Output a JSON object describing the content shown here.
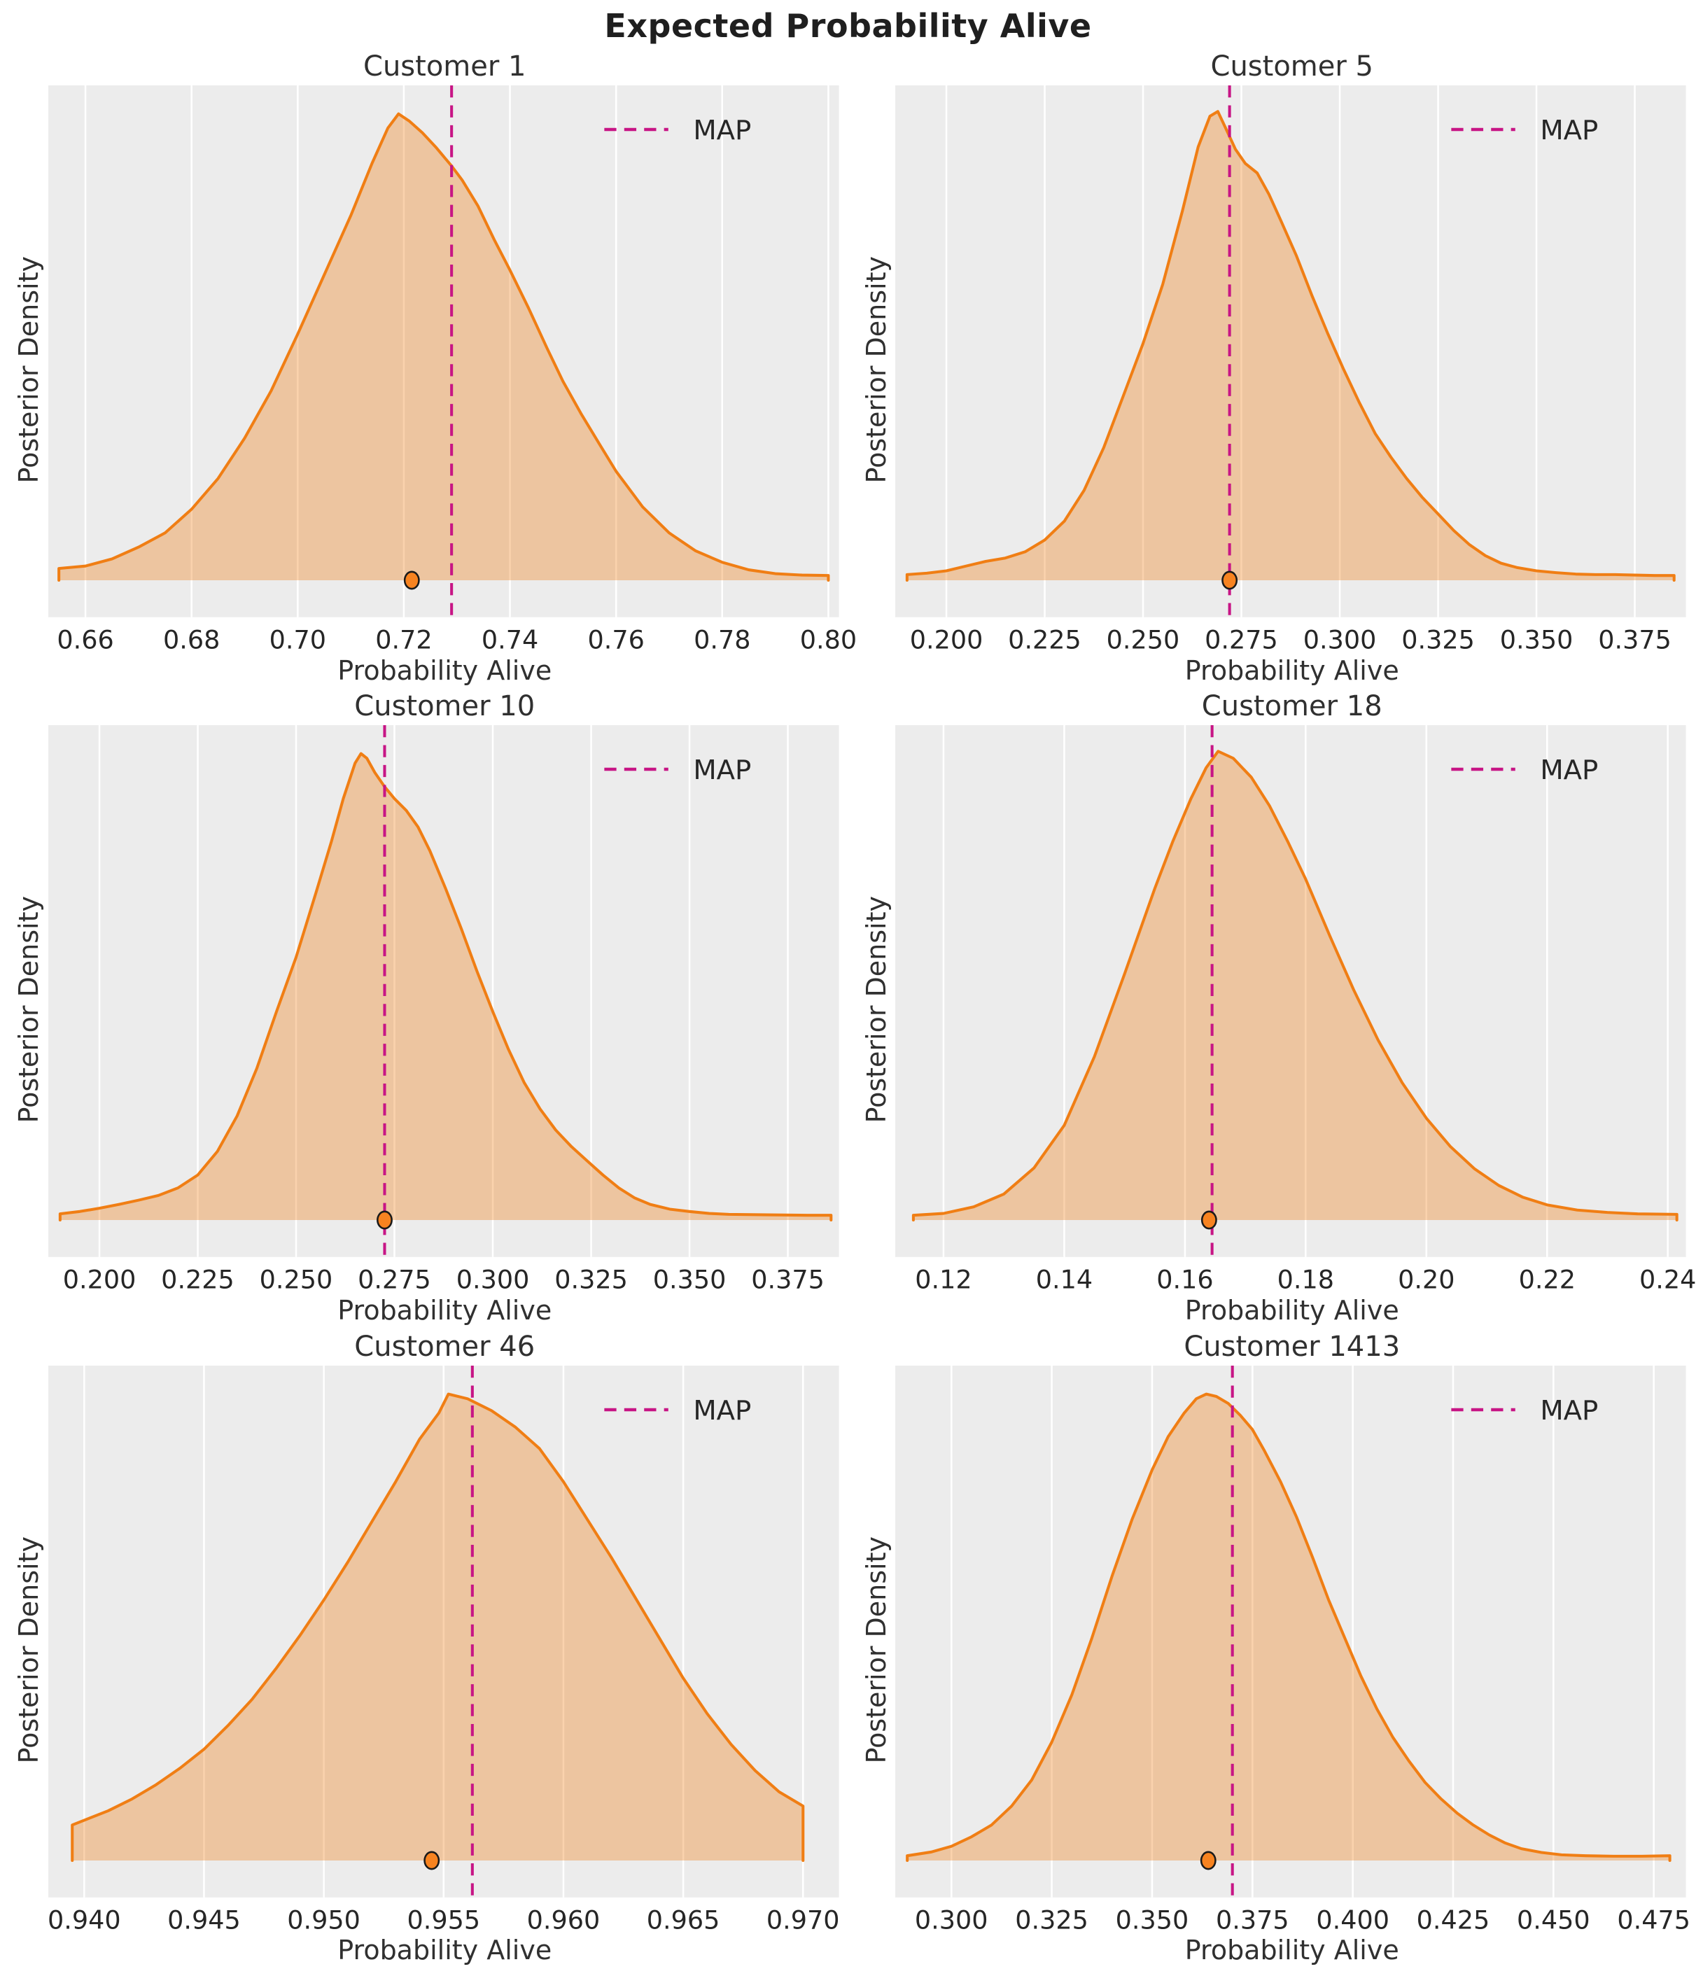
{
  "figure": {
    "title": "Expected Probability Alive"
  },
  "axis_labels": {
    "x": "Probability Alive",
    "y": "Posterior Density"
  },
  "legend": {
    "label": "MAP"
  },
  "colors": {
    "figure_background": "#ffffff",
    "axes_background": "#ececec",
    "grid": "#ffffff",
    "kde_line": "#f07e14",
    "kde_fill": "rgba(240,126,20,0.35)",
    "map_line": "#c71585",
    "dot_fill": "#f78320",
    "dot_edge": "#1a1a1a",
    "text": "#262626"
  },
  "chart_data": [
    {
      "type": "area",
      "title": "Customer 1",
      "xlabel": "Probability Alive",
      "ylabel": "Posterior Density",
      "legend_label": "MAP",
      "xlim": [
        0.653,
        0.802
      ],
      "xticks": [
        0.66,
        0.68,
        0.7,
        0.72,
        0.74,
        0.76,
        0.78,
        0.8
      ],
      "xtick_labels": [
        "0.66",
        "0.68",
        "0.70",
        "0.72",
        "0.74",
        "0.76",
        "0.78",
        "0.80"
      ],
      "yticks": [],
      "grid": "x-only",
      "map_value": 0.729,
      "dot_value": 0.7215,
      "curve": [
        [
          0.655,
          0
        ],
        [
          0.655,
          0.025
        ],
        [
          0.66,
          0.03
        ],
        [
          0.665,
          0.045
        ],
        [
          0.67,
          0.07
        ],
        [
          0.675,
          0.1
        ],
        [
          0.68,
          0.15
        ],
        [
          0.685,
          0.215
        ],
        [
          0.69,
          0.3
        ],
        [
          0.695,
          0.4
        ],
        [
          0.7,
          0.52
        ],
        [
          0.705,
          0.645
        ],
        [
          0.71,
          0.77
        ],
        [
          0.714,
          0.88
        ],
        [
          0.717,
          0.955
        ],
        [
          0.719,
          0.985
        ],
        [
          0.721,
          0.97
        ],
        [
          0.7235,
          0.945
        ],
        [
          0.726,
          0.915
        ],
        [
          0.729,
          0.875
        ],
        [
          0.731,
          0.845
        ],
        [
          0.734,
          0.79
        ],
        [
          0.737,
          0.72
        ],
        [
          0.74,
          0.655
        ],
        [
          0.7435,
          0.575
        ],
        [
          0.747,
          0.49
        ],
        [
          0.75,
          0.42
        ],
        [
          0.7535,
          0.35
        ],
        [
          0.757,
          0.285
        ],
        [
          0.76,
          0.23
        ],
        [
          0.765,
          0.155
        ],
        [
          0.77,
          0.1
        ],
        [
          0.775,
          0.062
        ],
        [
          0.78,
          0.038
        ],
        [
          0.785,
          0.022
        ],
        [
          0.79,
          0.014
        ],
        [
          0.795,
          0.011
        ],
        [
          0.8,
          0.01
        ],
        [
          0.8,
          0
        ]
      ]
    },
    {
      "type": "area",
      "title": "Customer 5",
      "xlabel": "Probability Alive",
      "ylabel": "Posterior Density",
      "legend_label": "MAP",
      "xlim": [
        0.187,
        0.388
      ],
      "xticks": [
        0.2,
        0.225,
        0.25,
        0.275,
        0.3,
        0.325,
        0.35,
        0.375
      ],
      "xtick_labels": [
        "0.200",
        "0.225",
        "0.250",
        "0.275",
        "0.300",
        "0.325",
        "0.350",
        "0.375"
      ],
      "yticks": [],
      "grid": "x-only",
      "map_value": 0.272,
      "dot_value": 0.272,
      "curve": [
        [
          0.19,
          0
        ],
        [
          0.19,
          0.012
        ],
        [
          0.195,
          0.015
        ],
        [
          0.2,
          0.02
        ],
        [
          0.205,
          0.03
        ],
        [
          0.21,
          0.04
        ],
        [
          0.215,
          0.047
        ],
        [
          0.22,
          0.06
        ],
        [
          0.225,
          0.085
        ],
        [
          0.23,
          0.125
        ],
        [
          0.235,
          0.19
        ],
        [
          0.24,
          0.28
        ],
        [
          0.245,
          0.39
        ],
        [
          0.25,
          0.5
        ],
        [
          0.255,
          0.625
        ],
        [
          0.26,
          0.78
        ],
        [
          0.264,
          0.915
        ],
        [
          0.267,
          0.98
        ],
        [
          0.269,
          0.99
        ],
        [
          0.271,
          0.955
        ],
        [
          0.2735,
          0.91
        ],
        [
          0.276,
          0.88
        ],
        [
          0.279,
          0.86
        ],
        [
          0.282,
          0.815
        ],
        [
          0.285,
          0.76
        ],
        [
          0.289,
          0.685
        ],
        [
          0.293,
          0.6
        ],
        [
          0.297,
          0.52
        ],
        [
          0.301,
          0.445
        ],
        [
          0.305,
          0.375
        ],
        [
          0.309,
          0.31
        ],
        [
          0.313,
          0.26
        ],
        [
          0.317,
          0.215
        ],
        [
          0.321,
          0.175
        ],
        [
          0.325,
          0.14
        ],
        [
          0.329,
          0.105
        ],
        [
          0.333,
          0.075
        ],
        [
          0.337,
          0.052
        ],
        [
          0.341,
          0.036
        ],
        [
          0.345,
          0.027
        ],
        [
          0.35,
          0.02
        ],
        [
          0.355,
          0.016
        ],
        [
          0.36,
          0.013
        ],
        [
          0.365,
          0.012
        ],
        [
          0.37,
          0.012
        ],
        [
          0.375,
          0.011
        ],
        [
          0.38,
          0.01
        ],
        [
          0.385,
          0.01
        ],
        [
          0.385,
          0
        ]
      ]
    },
    {
      "type": "area",
      "title": "Customer 10",
      "xlabel": "Probability Alive",
      "ylabel": "Posterior Density",
      "legend_label": "MAP",
      "xlim": [
        0.187,
        0.388
      ],
      "xticks": [
        0.2,
        0.225,
        0.25,
        0.275,
        0.3,
        0.325,
        0.35,
        0.375
      ],
      "xtick_labels": [
        "0.200",
        "0.225",
        "0.250",
        "0.275",
        "0.300",
        "0.325",
        "0.350",
        "0.375"
      ],
      "yticks": [],
      "grid": "x-only",
      "map_value": 0.2725,
      "dot_value": 0.2725,
      "curve": [
        [
          0.19,
          0
        ],
        [
          0.19,
          0.013
        ],
        [
          0.195,
          0.018
        ],
        [
          0.2,
          0.025
        ],
        [
          0.205,
          0.033
        ],
        [
          0.21,
          0.042
        ],
        [
          0.215,
          0.052
        ],
        [
          0.22,
          0.068
        ],
        [
          0.225,
          0.095
        ],
        [
          0.23,
          0.145
        ],
        [
          0.235,
          0.22
        ],
        [
          0.24,
          0.32
        ],
        [
          0.245,
          0.44
        ],
        [
          0.25,
          0.555
        ],
        [
          0.255,
          0.69
        ],
        [
          0.259,
          0.8
        ],
        [
          0.262,
          0.89
        ],
        [
          0.265,
          0.965
        ],
        [
          0.2665,
          0.985
        ],
        [
          0.268,
          0.975
        ],
        [
          0.27,
          0.945
        ],
        [
          0.2725,
          0.915
        ],
        [
          0.275,
          0.89
        ],
        [
          0.278,
          0.865
        ],
        [
          0.281,
          0.83
        ],
        [
          0.284,
          0.78
        ],
        [
          0.288,
          0.7
        ],
        [
          0.292,
          0.615
        ],
        [
          0.296,
          0.525
        ],
        [
          0.3,
          0.44
        ],
        [
          0.304,
          0.36
        ],
        [
          0.308,
          0.29
        ],
        [
          0.312,
          0.235
        ],
        [
          0.316,
          0.19
        ],
        [
          0.32,
          0.155
        ],
        [
          0.324,
          0.125
        ],
        [
          0.328,
          0.095
        ],
        [
          0.332,
          0.068
        ],
        [
          0.336,
          0.047
        ],
        [
          0.34,
          0.033
        ],
        [
          0.345,
          0.023
        ],
        [
          0.35,
          0.018
        ],
        [
          0.355,
          0.014
        ],
        [
          0.36,
          0.012
        ],
        [
          0.37,
          0.011
        ],
        [
          0.38,
          0.01
        ],
        [
          0.386,
          0.01
        ],
        [
          0.386,
          0
        ]
      ]
    },
    {
      "type": "area",
      "title": "Customer 18",
      "xlabel": "Probability Alive",
      "ylabel": "Posterior Density",
      "legend_label": "MAP",
      "xlim": [
        0.112,
        0.243
      ],
      "xticks": [
        0.12,
        0.14,
        0.16,
        0.18,
        0.2,
        0.22,
        0.24
      ],
      "xtick_labels": [
        "0.12",
        "0.14",
        "0.16",
        "0.18",
        "0.20",
        "0.22",
        "0.24"
      ],
      "yticks": [],
      "grid": "x-only",
      "map_value": 0.1645,
      "dot_value": 0.164,
      "curve": [
        [
          0.115,
          0
        ],
        [
          0.115,
          0.01
        ],
        [
          0.12,
          0.014
        ],
        [
          0.125,
          0.028
        ],
        [
          0.13,
          0.055
        ],
        [
          0.135,
          0.11
        ],
        [
          0.14,
          0.2
        ],
        [
          0.145,
          0.345
        ],
        [
          0.15,
          0.52
        ],
        [
          0.155,
          0.7
        ],
        [
          0.158,
          0.8
        ],
        [
          0.161,
          0.89
        ],
        [
          0.1635,
          0.955
        ],
        [
          0.1655,
          0.99
        ],
        [
          0.168,
          0.975
        ],
        [
          0.171,
          0.935
        ],
        [
          0.174,
          0.875
        ],
        [
          0.177,
          0.8
        ],
        [
          0.18,
          0.72
        ],
        [
          0.184,
          0.6
        ],
        [
          0.188,
          0.485
        ],
        [
          0.192,
          0.38
        ],
        [
          0.196,
          0.29
        ],
        [
          0.2,
          0.215
        ],
        [
          0.204,
          0.155
        ],
        [
          0.208,
          0.108
        ],
        [
          0.212,
          0.073
        ],
        [
          0.216,
          0.048
        ],
        [
          0.22,
          0.032
        ],
        [
          0.225,
          0.021
        ],
        [
          0.23,
          0.016
        ],
        [
          0.235,
          0.013
        ],
        [
          0.2415,
          0.012
        ],
        [
          0.2415,
          0
        ]
      ]
    },
    {
      "type": "area",
      "title": "Customer 46",
      "xlabel": "Probability Alive",
      "ylabel": "Posterior Density",
      "legend_label": "MAP",
      "xlim": [
        0.9385,
        0.9715
      ],
      "xticks": [
        0.94,
        0.945,
        0.95,
        0.955,
        0.96,
        0.965,
        0.97
      ],
      "xtick_labels": [
        "0.940",
        "0.945",
        "0.950",
        "0.955",
        "0.960",
        "0.965",
        "0.970"
      ],
      "yticks": [],
      "grid": "x-only",
      "map_value": 0.9562,
      "dot_value": 0.9545,
      "curve": [
        [
          0.9395,
          0
        ],
        [
          0.9395,
          0.075
        ],
        [
          0.94,
          0.085
        ],
        [
          0.941,
          0.105
        ],
        [
          0.942,
          0.13
        ],
        [
          0.943,
          0.16
        ],
        [
          0.944,
          0.195
        ],
        [
          0.945,
          0.235
        ],
        [
          0.946,
          0.285
        ],
        [
          0.947,
          0.34
        ],
        [
          0.948,
          0.405
        ],
        [
          0.949,
          0.475
        ],
        [
          0.95,
          0.55
        ],
        [
          0.951,
          0.63
        ],
        [
          0.952,
          0.715
        ],
        [
          0.953,
          0.8
        ],
        [
          0.954,
          0.89
        ],
        [
          0.9548,
          0.945
        ],
        [
          0.9552,
          0.985
        ],
        [
          0.956,
          0.975
        ],
        [
          0.957,
          0.95
        ],
        [
          0.958,
          0.915
        ],
        [
          0.959,
          0.87
        ],
        [
          0.96,
          0.8
        ],
        [
          0.961,
          0.72
        ],
        [
          0.962,
          0.64
        ],
        [
          0.963,
          0.555
        ],
        [
          0.964,
          0.47
        ],
        [
          0.965,
          0.385
        ],
        [
          0.966,
          0.31
        ],
        [
          0.967,
          0.245
        ],
        [
          0.968,
          0.19
        ],
        [
          0.969,
          0.145
        ],
        [
          0.97,
          0.115
        ],
        [
          0.97,
          0
        ]
      ]
    },
    {
      "type": "area",
      "title": "Customer 1413",
      "xlabel": "Probability Alive",
      "ylabel": "Posterior Density",
      "legend_label": "MAP",
      "xlim": [
        0.286,
        0.483
      ],
      "xticks": [
        0.3,
        0.325,
        0.35,
        0.375,
        0.4,
        0.425,
        0.45,
        0.475
      ],
      "xtick_labels": [
        "0.300",
        "0.325",
        "0.350",
        "0.375",
        "0.400",
        "0.425",
        "0.450",
        "0.475"
      ],
      "yticks": [],
      "grid": "x-only",
      "map_value": 0.37,
      "dot_value": 0.364,
      "curve": [
        [
          0.289,
          0
        ],
        [
          0.289,
          0.01
        ],
        [
          0.295,
          0.018
        ],
        [
          0.3,
          0.03
        ],
        [
          0.305,
          0.05
        ],
        [
          0.31,
          0.075
        ],
        [
          0.315,
          0.115
        ],
        [
          0.32,
          0.17
        ],
        [
          0.325,
          0.25
        ],
        [
          0.33,
          0.35
        ],
        [
          0.335,
          0.47
        ],
        [
          0.34,
          0.6
        ],
        [
          0.345,
          0.72
        ],
        [
          0.35,
          0.825
        ],
        [
          0.354,
          0.895
        ],
        [
          0.358,
          0.945
        ],
        [
          0.361,
          0.975
        ],
        [
          0.3635,
          0.985
        ],
        [
          0.366,
          0.98
        ],
        [
          0.369,
          0.965
        ],
        [
          0.372,
          0.94
        ],
        [
          0.375,
          0.91
        ],
        [
          0.378,
          0.865
        ],
        [
          0.382,
          0.8
        ],
        [
          0.386,
          0.725
        ],
        [
          0.39,
          0.64
        ],
        [
          0.394,
          0.55
        ],
        [
          0.398,
          0.47
        ],
        [
          0.402,
          0.39
        ],
        [
          0.406,
          0.32
        ],
        [
          0.41,
          0.26
        ],
        [
          0.414,
          0.21
        ],
        [
          0.418,
          0.165
        ],
        [
          0.422,
          0.13
        ],
        [
          0.426,
          0.1
        ],
        [
          0.43,
          0.075
        ],
        [
          0.434,
          0.054
        ],
        [
          0.438,
          0.037
        ],
        [
          0.442,
          0.025
        ],
        [
          0.447,
          0.017
        ],
        [
          0.452,
          0.012
        ],
        [
          0.458,
          0.01
        ],
        [
          0.465,
          0.009
        ],
        [
          0.472,
          0.009
        ],
        [
          0.479,
          0.01
        ],
        [
          0.479,
          0
        ]
      ]
    }
  ]
}
